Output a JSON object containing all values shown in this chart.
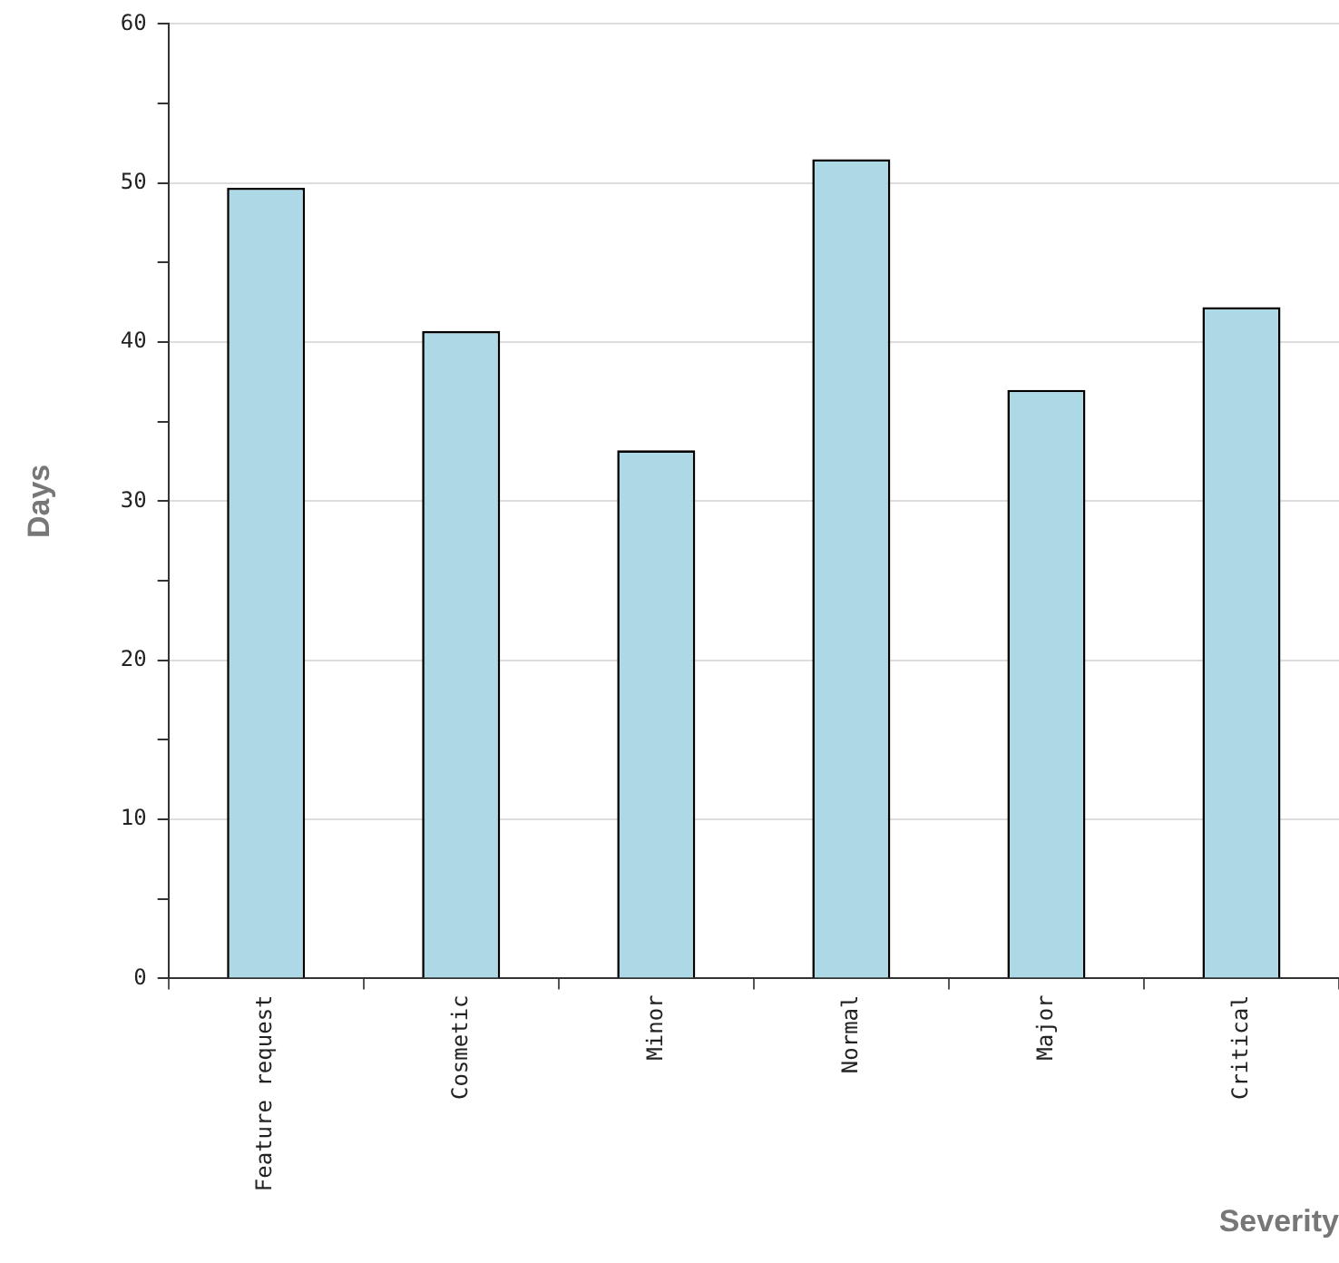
{
  "chart_data": {
    "type": "bar",
    "xlabel": "Severity",
    "ylabel": "Days",
    "categories": [
      "Feature request",
      "Cosmetic",
      "Minor",
      "Normal",
      "Major",
      "Critical"
    ],
    "values": [
      49.7,
      40.7,
      33.2,
      51.5,
      37.0,
      42.2
    ],
    "color": "#add8e6",
    "ylim": [
      0,
      60
    ],
    "yticks": [
      0,
      {
        "value": 5,
        "label": null
      },
      10,
      {
        "value": 15,
        "label": null
      },
      20,
      {
        "value": 25,
        "label": null
      },
      30,
      {
        "value": 35,
        "label": null
      },
      40,
      {
        "value": 45,
        "label": null
      },
      50,
      {
        "value": 55,
        "label": null
      },
      60
    ],
    "grid": "y",
    "legend": false
  }
}
